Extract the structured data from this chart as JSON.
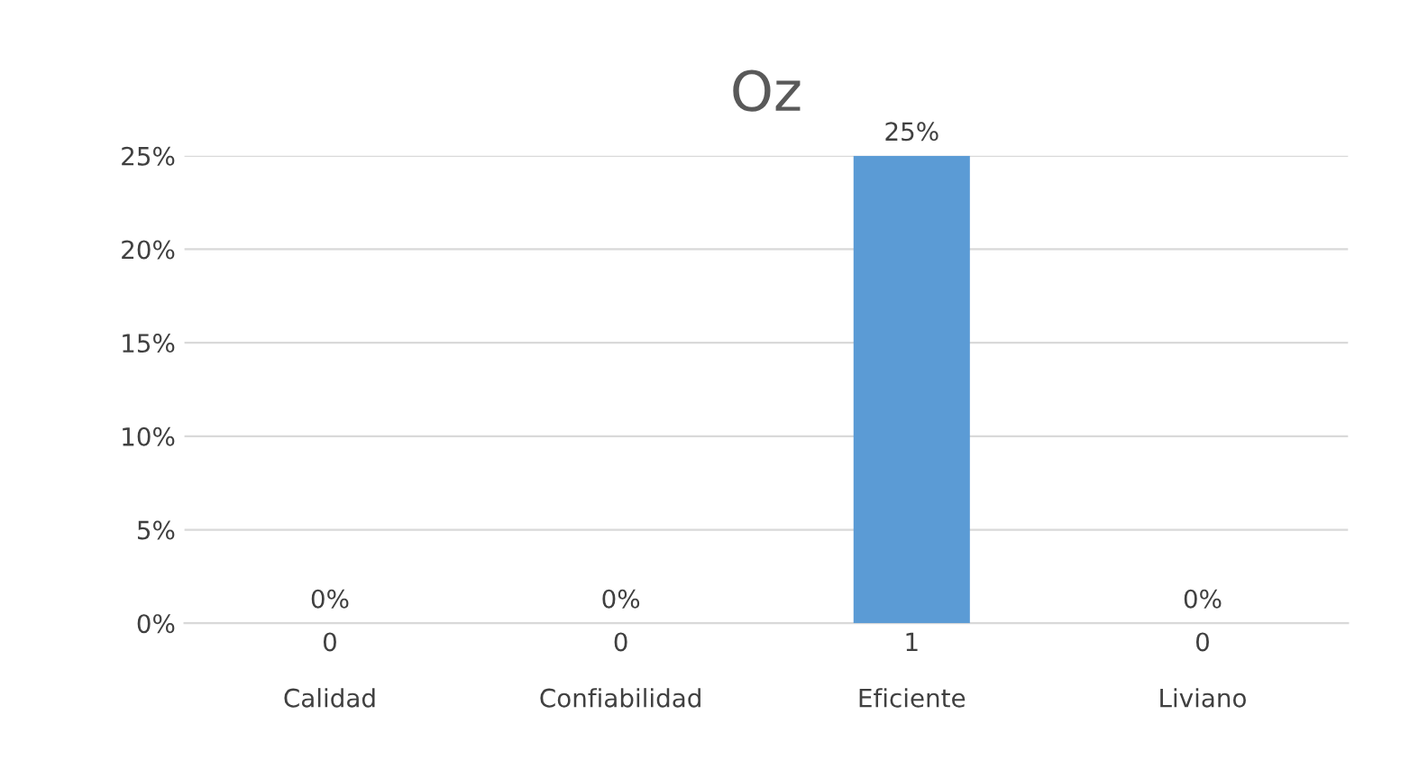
{
  "chart_data": {
    "type": "bar",
    "title": "Oz",
    "categories": [
      "0\n\nCalidad",
      "0\n\nConfiabilidad",
      "1\n\nEficiente",
      "0\n\nLiviano"
    ],
    "values": [
      0,
      0,
      25,
      0
    ],
    "color": "#5b9bd5",
    "value_labels": [
      "0%",
      "0%",
      "25%",
      "0%"
    ],
    "ylim": [
      0,
      25
    ],
    "yticks": [
      {
        "value": 0,
        "label": "0%"
      },
      {
        "value": 5,
        "label": "5%"
      },
      {
        "value": 10,
        "label": "10%"
      },
      {
        "value": 15,
        "label": "15%"
      },
      {
        "value": 20,
        "label": "20%"
      },
      {
        "value": 25,
        "label": "25%"
      }
    ],
    "grid": "y"
  }
}
